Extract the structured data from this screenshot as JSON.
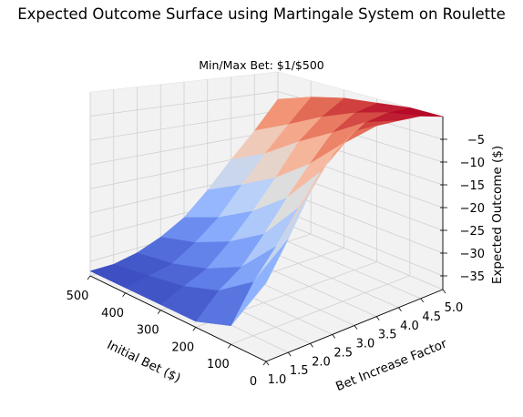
{
  "chart_data": {
    "type": "surface3d",
    "title": "Expected Outcome Surface using Martingale System on Roulette",
    "subtitle": "Min/Max Bet: $1/$500",
    "xlabel": "Initial Bet ($)",
    "ylabel": "Bet Increase Factor",
    "zlabel": "Expected Outcome ($)",
    "xlim": [
      0,
      500
    ],
    "ylim": [
      1.0,
      5.0
    ],
    "zlim": [
      -38,
      0
    ],
    "x_ticks": [
      "0",
      "100",
      "200",
      "300",
      "400",
      "500"
    ],
    "y_ticks": [
      "1.0",
      "1.5",
      "2.0",
      "2.5",
      "3.0",
      "3.5",
      "4.0",
      "4.5",
      "5.0"
    ],
    "z_ticks": [
      "−5",
      "−10",
      "−15",
      "−20",
      "−25",
      "−30",
      "−35"
    ],
    "colormap": "coolwarm",
    "grid": true,
    "surface_samples": {
      "bet_increase_factor": [
        1.0,
        1.5,
        2.0,
        2.5,
        3.0,
        3.5,
        4.0,
        4.5,
        5.0
      ],
      "initial_bet": [
        0,
        100,
        200,
        300,
        400,
        500
      ],
      "expected_outcome": [
        [
          -26,
          -35,
          -37,
          -37,
          -37,
          -37
        ],
        [
          -20,
          -29,
          -33,
          -35,
          -36,
          -37
        ],
        [
          -13,
          -24,
          -30,
          -33,
          -35,
          -36
        ],
        [
          -7,
          -18,
          -25,
          -29,
          -32,
          -34
        ],
        [
          -3,
          -12,
          -19,
          -24,
          -28,
          -31
        ],
        [
          -2,
          -7,
          -13,
          -18,
          -22,
          -26
        ],
        [
          -1,
          -3,
          -7,
          -11,
          -16,
          -20
        ],
        [
          0,
          -1,
          -3,
          -6,
          -10,
          -14
        ],
        [
          0,
          0,
          -1,
          -2,
          -4,
          -7
        ]
      ]
    }
  },
  "colors": {
    "low": "#3b4cc0",
    "mid": "#dddddd",
    "high": "#b40426",
    "pane": "#f2f2f2",
    "grid": "#d0d0d0"
  }
}
